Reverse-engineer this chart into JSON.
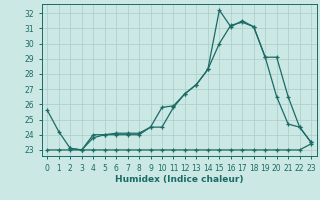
{
  "xlabel": "Humidex (Indice chaleur)",
  "ylabel": "",
  "bg_color": "#cce8e5",
  "grid_color": "#aaccca",
  "line_color": "#1a6b65",
  "xlim": [
    -0.5,
    23.5
  ],
  "ylim": [
    22.6,
    32.6
  ],
  "yticks": [
    23,
    24,
    25,
    26,
    27,
    28,
    29,
    30,
    31,
    32
  ],
  "xticks": [
    0,
    1,
    2,
    3,
    4,
    5,
    6,
    7,
    8,
    9,
    10,
    11,
    12,
    13,
    14,
    15,
    16,
    17,
    18,
    19,
    20,
    21,
    22,
    23
  ],
  "line1_x": [
    0,
    1,
    2,
    3,
    4,
    5,
    6,
    7,
    8,
    9,
    10,
    11,
    12,
    13,
    14,
    15,
    16,
    17,
    18,
    19,
    20,
    21,
    22,
    23
  ],
  "line1_y": [
    25.6,
    24.2,
    23.1,
    23.0,
    24.0,
    24.0,
    24.0,
    24.0,
    24.0,
    24.5,
    24.5,
    25.8,
    26.7,
    27.3,
    28.3,
    30.0,
    31.2,
    31.4,
    31.1,
    29.1,
    26.5,
    24.7,
    24.5,
    23.5
  ],
  "line2_x": [
    0,
    1,
    2,
    3,
    4,
    5,
    6,
    7,
    8,
    9,
    10,
    11,
    12,
    13,
    14,
    15,
    16,
    17,
    18,
    19,
    20,
    21,
    22,
    23
  ],
  "line2_y": [
    23.0,
    23.0,
    23.0,
    23.0,
    23.0,
    23.0,
    23.0,
    23.0,
    23.0,
    23.0,
    23.0,
    23.0,
    23.0,
    23.0,
    23.0,
    23.0,
    23.0,
    23.0,
    23.0,
    23.0,
    23.0,
    23.0,
    23.0,
    23.4
  ],
  "line3_x": [
    2,
    3,
    4,
    5,
    6,
    7,
    8,
    9,
    10,
    11,
    12,
    13,
    14,
    15,
    16,
    17,
    18,
    19,
    20,
    21,
    22,
    23
  ],
  "line3_y": [
    23.1,
    23.0,
    23.8,
    24.0,
    24.1,
    24.1,
    24.1,
    24.5,
    25.8,
    25.9,
    26.7,
    27.3,
    28.3,
    32.2,
    31.1,
    31.5,
    31.1,
    29.1,
    29.1,
    26.5,
    24.5,
    23.5
  ]
}
